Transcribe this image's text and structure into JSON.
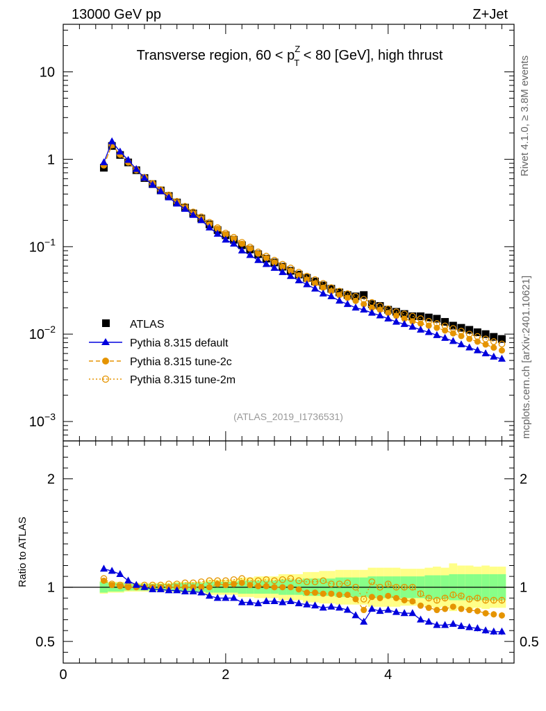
{
  "header": {
    "left": "13000 GeV pp",
    "right": "Z+Jet"
  },
  "side_labels": {
    "rivet": "Rivet 4.1.0, ≥ 3.8M events",
    "mcplots": "mcplots.cern.ch [arXiv:2401.10621]"
  },
  "colors": {
    "atlas": "#000000",
    "default": "#0000dd",
    "tune2c": "#e59400",
    "tune2m": "#e59400",
    "band_inner": "#88ff88",
    "band_outer": "#ffff88"
  },
  "chart_data": [
    {
      "type": "scatter",
      "title_parts": {
        "before": "Transverse region, 60 < p",
        "sup": "Z",
        "sub": "T",
        "after": " < 80 [GeV], high thrust"
      },
      "watermark": "(ATLAS_2019_I1736531)",
      "yscale": "log",
      "ylim": [
        0.0006,
        35
      ],
      "xlim": [
        0,
        5.55
      ],
      "yticks": [
        {
          "value": 10,
          "label": "10"
        },
        {
          "value": 1,
          "label": "1"
        },
        {
          "value": 0.1,
          "base": "10",
          "exp": "−1"
        },
        {
          "value": 0.01,
          "base": "10",
          "exp": "−2"
        },
        {
          "value": 0.001,
          "base": "10",
          "exp": "−3"
        }
      ],
      "x": [
        0.5,
        0.6,
        0.7,
        0.8,
        0.9,
        1.0,
        1.1,
        1.2,
        1.3,
        1.4,
        1.5,
        1.6,
        1.7,
        1.8,
        1.9,
        2.0,
        2.1,
        2.2,
        2.3,
        2.4,
        2.5,
        2.6,
        2.7,
        2.8,
        2.9,
        3.0,
        3.1,
        3.2,
        3.3,
        3.4,
        3.5,
        3.6,
        3.7,
        3.8,
        3.9,
        4.0,
        4.1,
        4.2,
        4.3,
        4.4,
        4.5,
        4.6,
        4.7,
        4.8,
        4.9,
        5.0,
        5.1,
        5.2,
        5.3,
        5.4
      ],
      "legend": [
        {
          "label": "ATLAS",
          "key": "atlas"
        },
        {
          "label": "Pythia 8.315 default",
          "key": "default"
        },
        {
          "label": "Pythia 8.315 tune-2c",
          "key": "tune2c"
        },
        {
          "label": "Pythia 8.315 tune-2m",
          "key": "tune2m"
        }
      ],
      "series": [
        {
          "name": "ATLAS",
          "key": "atlas",
          "values": [
            0.8,
            1.42,
            1.12,
            0.92,
            0.75,
            0.61,
            0.52,
            0.44,
            0.38,
            0.32,
            0.28,
            0.24,
            0.21,
            0.18,
            0.155,
            0.135,
            0.12,
            0.104,
            0.093,
            0.082,
            0.073,
            0.066,
            0.059,
            0.053,
            0.048,
            0.044,
            0.04,
            0.036,
            0.033,
            0.03,
            0.028,
            0.027,
            0.028,
            0.022,
            0.021,
            0.019,
            0.018,
            0.017,
            0.016,
            0.016,
            0.0155,
            0.015,
            0.0138,
            0.0125,
            0.0118,
            0.0112,
            0.0105,
            0.01,
            0.0093,
            0.0088
          ]
        },
        {
          "name": "Pythia 8.315 default",
          "key": "default",
          "values": [
            0.92,
            1.6,
            1.22,
            0.98,
            0.77,
            0.61,
            0.51,
            0.43,
            0.365,
            0.31,
            0.27,
            0.23,
            0.2,
            0.165,
            0.14,
            0.12,
            0.108,
            0.09,
            0.08,
            0.07,
            0.063,
            0.057,
            0.051,
            0.046,
            0.041,
            0.037,
            0.033,
            0.029,
            0.027,
            0.024,
            0.022,
            0.02,
            0.019,
            0.0175,
            0.0163,
            0.015,
            0.0138,
            0.013,
            0.0121,
            0.0112,
            0.0105,
            0.0097,
            0.009,
            0.0083,
            0.0076,
            0.007,
            0.0065,
            0.006,
            0.0055,
            0.0052
          ]
        },
        {
          "name": "Pythia 8.315 tune-2c",
          "key": "tune2c",
          "values": [
            0.85,
            1.45,
            1.13,
            0.92,
            0.75,
            0.61,
            0.52,
            0.44,
            0.38,
            0.32,
            0.28,
            0.24,
            0.21,
            0.18,
            0.16,
            0.138,
            0.123,
            0.108,
            0.095,
            0.083,
            0.074,
            0.066,
            0.059,
            0.053,
            0.047,
            0.042,
            0.038,
            0.034,
            0.031,
            0.028,
            0.026,
            0.024,
            0.022,
            0.02,
            0.019,
            0.0175,
            0.0162,
            0.015,
            0.014,
            0.0132,
            0.0125,
            0.0118,
            0.011,
            0.0102,
            0.0095,
            0.0088,
            0.0082,
            0.0076,
            0.007,
            0.0065
          ]
        },
        {
          "name": "Pythia 8.315 tune-2m",
          "key": "tune2m",
          "values": [
            0.86,
            1.46,
            1.14,
            0.93,
            0.76,
            0.62,
            0.53,
            0.45,
            0.39,
            0.33,
            0.29,
            0.25,
            0.22,
            0.19,
            0.165,
            0.143,
            0.128,
            0.112,
            0.099,
            0.087,
            0.078,
            0.07,
            0.063,
            0.057,
            0.051,
            0.046,
            0.042,
            0.038,
            0.034,
            0.031,
            0.029,
            0.027,
            0.025,
            0.023,
            0.021,
            0.0195,
            0.018,
            0.017,
            0.016,
            0.015,
            0.014,
            0.0132,
            0.0124,
            0.0116,
            0.0108,
            0.01,
            0.0094,
            0.0088,
            0.0082,
            0.0077
          ]
        }
      ]
    },
    {
      "type": "scatter",
      "ylabel": "Ratio to ATLAS",
      "xlim": [
        0,
        5.55
      ],
      "ylim": [
        0.3,
        2.35
      ],
      "yticks": [
        2,
        1,
        0.5
      ],
      "ytick_labels": [
        "2",
        "1",
        "0.5"
      ],
      "xticks": [
        0,
        2,
        4
      ],
      "xtick_labels": [
        "0",
        "2",
        "4"
      ],
      "reference_line": 1,
      "x": [
        0.5,
        0.6,
        0.7,
        0.8,
        0.9,
        1.0,
        1.1,
        1.2,
        1.3,
        1.4,
        1.5,
        1.6,
        1.7,
        1.8,
        1.9,
        2.0,
        2.1,
        2.2,
        2.3,
        2.4,
        2.5,
        2.6,
        2.7,
        2.8,
        2.9,
        3.0,
        3.1,
        3.2,
        3.3,
        3.4,
        3.5,
        3.6,
        3.7,
        3.8,
        3.9,
        4.0,
        4.1,
        4.2,
        4.3,
        4.4,
        4.5,
        4.6,
        4.7,
        4.8,
        4.9,
        5.0,
        5.1,
        5.2,
        5.3,
        5.4
      ],
      "band_inner_half": [
        0.05,
        0.04,
        0.04,
        0.03,
        0.03,
        0.03,
        0.03,
        0.03,
        0.03,
        0.04,
        0.04,
        0.04,
        0.04,
        0.05,
        0.05,
        0.05,
        0.05,
        0.06,
        0.06,
        0.06,
        0.06,
        0.06,
        0.07,
        0.07,
        0.07,
        0.08,
        0.08,
        0.08,
        0.08,
        0.09,
        0.09,
        0.09,
        0.09,
        0.1,
        0.1,
        0.1,
        0.1,
        0.1,
        0.1,
        0.1,
        0.11,
        0.11,
        0.11,
        0.12,
        0.12,
        0.12,
        0.12,
        0.12,
        0.12,
        0.12
      ],
      "band_outer_half": [
        0.06,
        0.05,
        0.05,
        0.04,
        0.04,
        0.04,
        0.04,
        0.04,
        0.04,
        0.05,
        0.05,
        0.05,
        0.05,
        0.07,
        0.07,
        0.07,
        0.07,
        0.09,
        0.09,
        0.1,
        0.1,
        0.1,
        0.12,
        0.12,
        0.12,
        0.14,
        0.14,
        0.15,
        0.15,
        0.16,
        0.16,
        0.16,
        0.16,
        0.18,
        0.18,
        0.18,
        0.18,
        0.17,
        0.17,
        0.17,
        0.18,
        0.19,
        0.18,
        0.22,
        0.2,
        0.2,
        0.19,
        0.2,
        0.19,
        0.19
      ],
      "series": [
        {
          "name": "Pythia 8.315 default",
          "key": "default",
          "values": [
            1.17,
            1.15,
            1.12,
            1.06,
            1.02,
            1.0,
            0.98,
            0.98,
            0.97,
            0.97,
            0.96,
            0.96,
            0.95,
            0.92,
            0.9,
            0.9,
            0.9,
            0.86,
            0.86,
            0.85,
            0.87,
            0.87,
            0.86,
            0.87,
            0.85,
            0.84,
            0.83,
            0.81,
            0.82,
            0.81,
            0.79,
            0.74,
            0.68,
            0.8,
            0.78,
            0.79,
            0.77,
            0.76,
            0.76,
            0.7,
            0.68,
            0.65,
            0.65,
            0.66,
            0.64,
            0.63,
            0.62,
            0.6,
            0.59,
            0.59
          ]
        },
        {
          "name": "Pythia 8.315 tune-2c",
          "key": "tune2c",
          "values": [
            1.06,
            1.02,
            1.01,
            1.0,
            1.0,
            1.0,
            1.0,
            1.0,
            1.0,
            1.0,
            1.0,
            1.0,
            1.0,
            1.0,
            1.03,
            1.02,
            1.03,
            1.04,
            1.02,
            1.01,
            1.01,
            1.0,
            1.0,
            1.0,
            0.98,
            0.95,
            0.95,
            0.94,
            0.94,
            0.93,
            0.93,
            0.89,
            0.79,
            0.91,
            0.9,
            0.92,
            0.9,
            0.88,
            0.87,
            0.83,
            0.81,
            0.79,
            0.8,
            0.82,
            0.8,
            0.79,
            0.78,
            0.76,
            0.75,
            0.74
          ]
        },
        {
          "name": "Pythia 8.315 tune-2m",
          "key": "tune2m",
          "values": [
            1.08,
            1.03,
            1.02,
            1.01,
            1.01,
            1.02,
            1.02,
            1.02,
            1.03,
            1.03,
            1.04,
            1.04,
            1.05,
            1.06,
            1.06,
            1.06,
            1.07,
            1.08,
            1.06,
            1.06,
            1.07,
            1.06,
            1.07,
            1.08,
            1.06,
            1.05,
            1.05,
            1.06,
            1.03,
            1.03,
            1.04,
            1.0,
            0.89,
            1.05,
            1.0,
            1.03,
            1.0,
            1.0,
            1.0,
            0.94,
            0.9,
            0.88,
            0.9,
            0.93,
            0.92,
            0.89,
            0.9,
            0.88,
            0.88,
            0.88
          ]
        }
      ]
    }
  ]
}
